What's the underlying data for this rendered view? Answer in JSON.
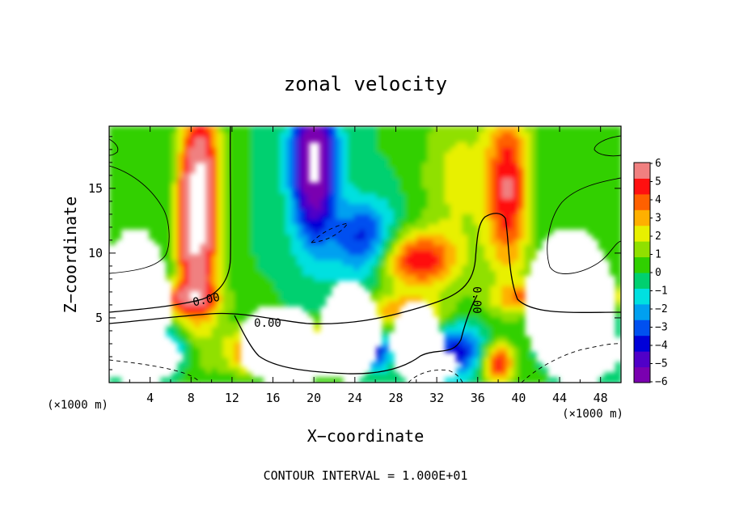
{
  "chart_data": {
    "type": "heatmap",
    "title": "zonal velocity",
    "xlabel": "X−coordinate",
    "ylabel": "Z−coordinate",
    "x_unit_label": "(×1000 m)",
    "x_unit_label_right": "(×1000 m)",
    "xlim": [
      0,
      50
    ],
    "ylim": [
      0,
      19.8
    ],
    "x_ticks": [
      "4",
      "8",
      "12",
      "16",
      "20",
      "24",
      "28",
      "32",
      "36",
      "40",
      "44",
      "48"
    ],
    "y_ticks": [
      "5",
      "10",
      "15"
    ],
    "colorbar": {
      "range": [
        -6,
        6
      ],
      "ticks": [
        "6",
        "5",
        "4",
        "3",
        "2",
        "1",
        "0",
        "−1",
        "−2",
        "−3",
        "−4",
        "−5",
        "−6"
      ],
      "colors": [
        "#7a00b0",
        "#5000c8",
        "#0000d8",
        "#0050f0",
        "#00a0f0",
        "#00e0e0",
        "#00d070",
        "#30d000",
        "#90e000",
        "#e8f000",
        "#ffb000",
        "#ff6000",
        "#ff1010",
        "#f08080"
      ]
    },
    "contour_labels": [
      "0.00",
      "0.00",
      "0.00"
    ],
    "footer": "CONTOUR INTERVAL = 1.000E+01"
  }
}
